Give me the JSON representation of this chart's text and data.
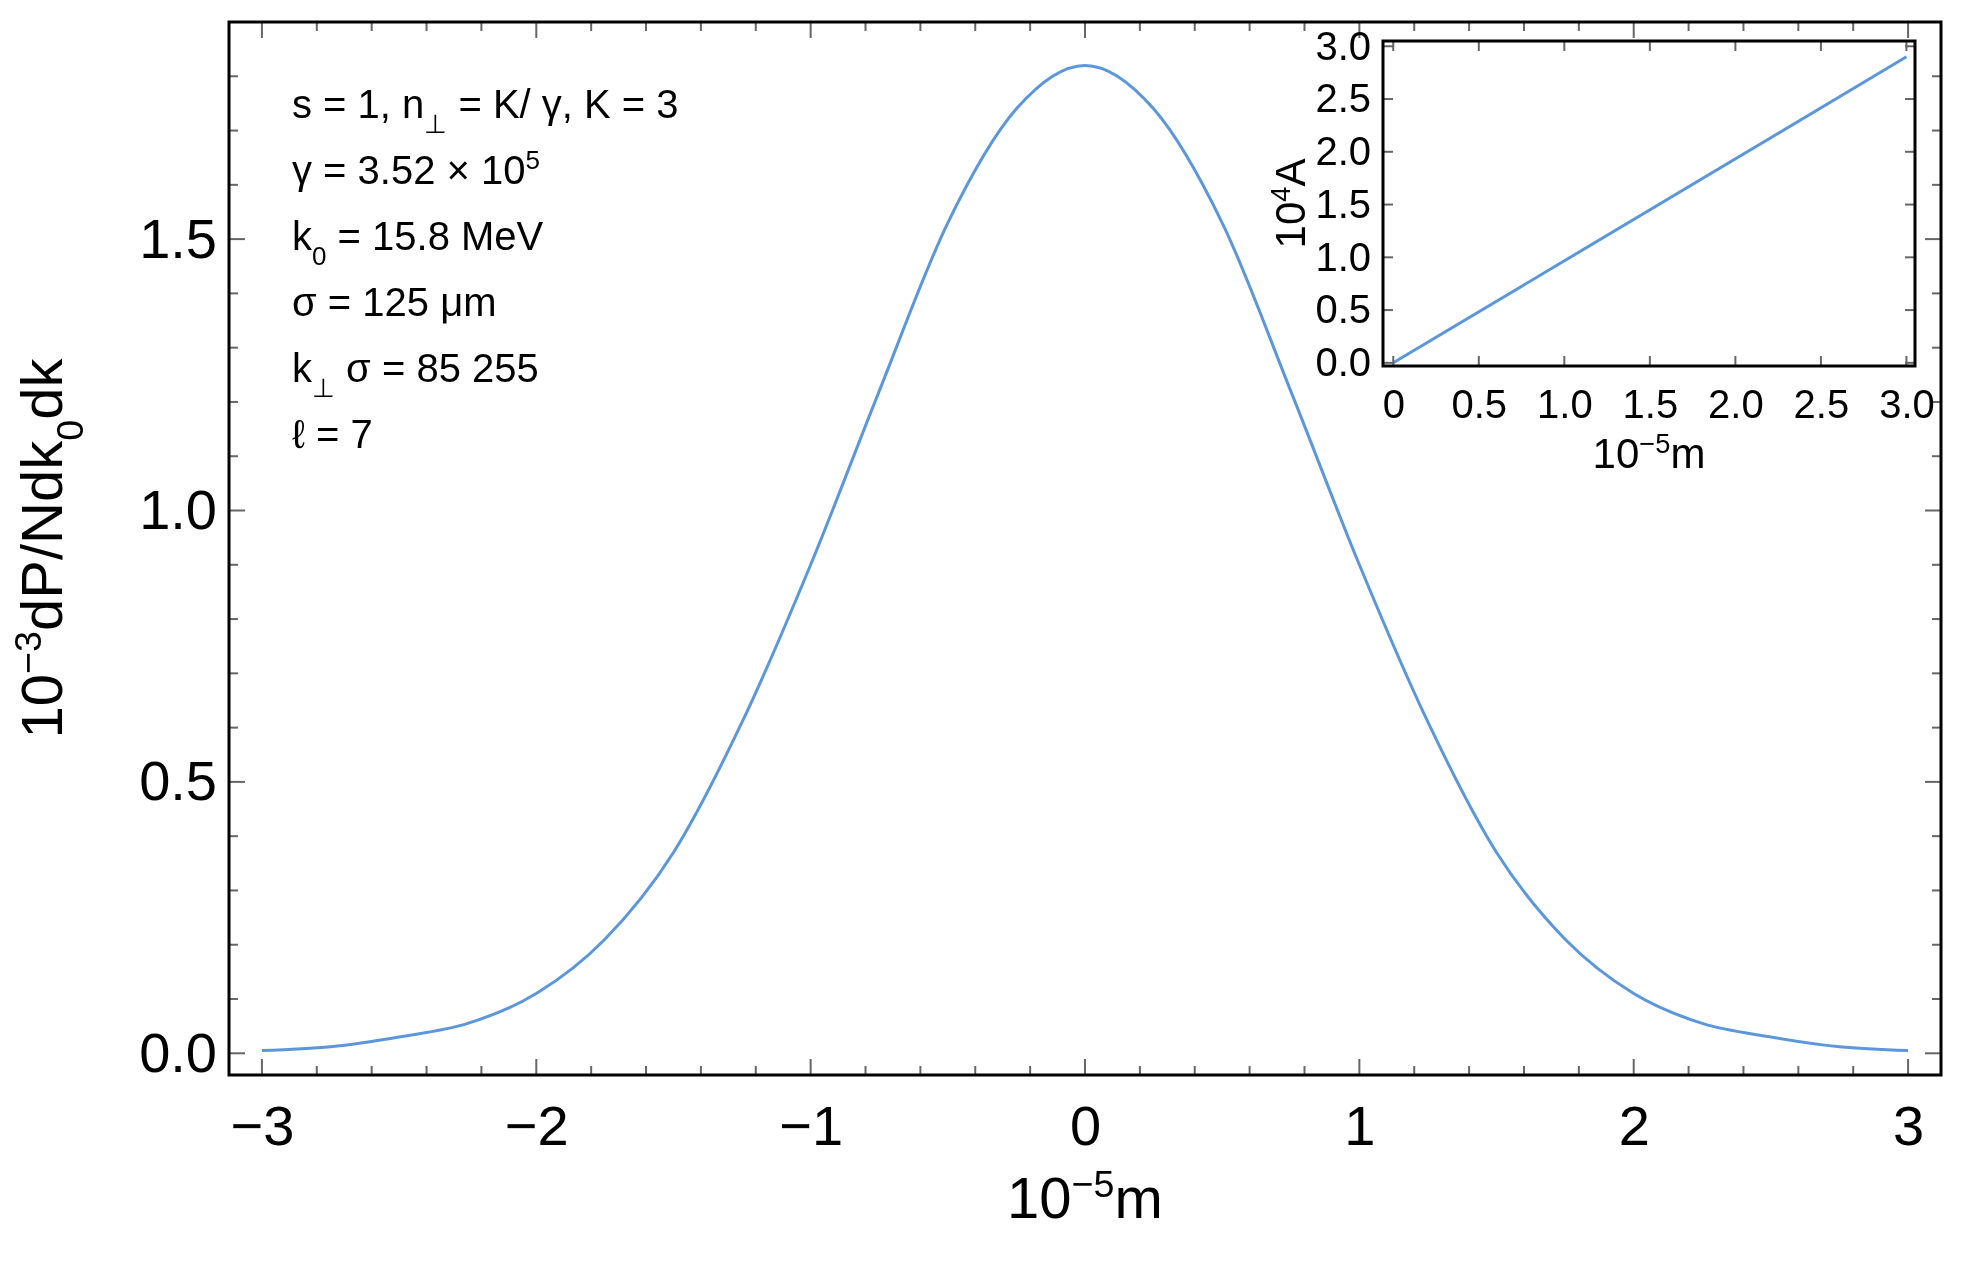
{
  "chart_data": [
    {
      "type": "line",
      "xlabel": "10$^{−5}$m",
      "ylabel": "10$^{−3}$dP/Ndk$_{0}$dk",
      "x": [
        -3,
        -2.75,
        -2.5,
        -2.25,
        -2,
        -1.75,
        -1.5,
        -1.25,
        -1,
        -0.75,
        -0.5,
        -0.25,
        0,
        0.25,
        0.5,
        0.75,
        1,
        1.25,
        1.5,
        1.75,
        2,
        2.25,
        2.5,
        2.75,
        3
      ],
      "series": [
        {
          "color": "#5b97da",
          "values": [
            0.005,
            0.012,
            0.03,
            0.055,
            0.11,
            0.21,
            0.37,
            0.61,
            0.9,
            1.22,
            1.53,
            1.74,
            1.82,
            1.74,
            1.53,
            1.22,
            0.9,
            0.61,
            0.37,
            0.21,
            0.11,
            0.055,
            0.03,
            0.012,
            0.005
          ]
        }
      ],
      "xlim": [
        -3.12,
        3.12
      ],
      "ylim": [
        -0.04,
        1.9
      ],
      "xticks": [
        -3,
        {
          "value": -2.8,
          "label": null
        },
        {
          "value": -2.6,
          "label": null
        },
        {
          "value": -2.4,
          "label": null
        },
        {
          "value": -2.2,
          "label": null
        },
        -2,
        {
          "value": -1.8,
          "label": null
        },
        {
          "value": -1.6,
          "label": null
        },
        {
          "value": -1.4,
          "label": null
        },
        {
          "value": -1.2,
          "label": null
        },
        -1,
        {
          "value": -0.8,
          "label": null
        },
        {
          "value": -0.6,
          "label": null
        },
        {
          "value": -0.4,
          "label": null
        },
        {
          "value": -0.2,
          "label": null
        },
        0,
        {
          "value": 0.2,
          "label": null
        },
        {
          "value": 0.4,
          "label": null
        },
        {
          "value": 0.6,
          "label": null
        },
        {
          "value": 0.8,
          "label": null
        },
        1,
        {
          "value": 1.2,
          "label": null
        },
        {
          "value": 1.4,
          "label": null
        },
        {
          "value": 1.6,
          "label": null
        },
        {
          "value": 1.8,
          "label": null
        },
        2,
        {
          "value": 2.2,
          "label": null
        },
        {
          "value": 2.4,
          "label": null
        },
        {
          "value": 2.6,
          "label": null
        },
        {
          "value": 2.8,
          "label": null
        },
        3
      ],
      "yticks": [
        {
          "value": 0,
          "label": "0.0"
        },
        {
          "value": 0.1,
          "label": null
        },
        {
          "value": 0.2,
          "label": null
        },
        {
          "value": 0.3,
          "label": null
        },
        {
          "value": 0.4,
          "label": null
        },
        0.5,
        {
          "value": 0.6,
          "label": null
        },
        {
          "value": 0.7,
          "label": null
        },
        {
          "value": 0.8,
          "label": null
        },
        {
          "value": 0.9,
          "label": null
        },
        {
          "value": 1,
          "label": "1.0"
        },
        {
          "value": 1.1,
          "label": null
        },
        {
          "value": 1.2,
          "label": null
        },
        {
          "value": 1.3,
          "label": null
        },
        {
          "value": 1.4,
          "label": null
        },
        1.5,
        {
          "value": 1.6,
          "label": null
        },
        {
          "value": 1.7,
          "label": null
        },
        {
          "value": 1.8,
          "label": null
        }
      ],
      "grid": false,
      "marker": "none",
      "line_style": "solid",
      "annotations": [
        "s = 1, n$_{⊥}$ = K/ γ,  K = 3",
        "γ = 3.52 × 10$^{5}$",
        "k$_{0}$ = 15.8 MeV",
        "σ = 125 μm",
        "k$_{⊥}$ σ = 85 255",
        "ℓ = 7"
      ]
    },
    {
      "type": "line",
      "xlabel": "10$^{−5}$m",
      "ylabel": "10$^{4}$A",
      "x": [
        0,
        3
      ],
      "series": [
        {
          "color": "#5b97da",
          "values": [
            0,
            2.9
          ]
        }
      ],
      "xlim": [
        -0.06,
        3.05
      ],
      "ylim": [
        -0.03,
        3.05
      ],
      "xticks": [
        0,
        0.5,
        {
          "value": 1,
          "label": "1.0"
        },
        1.5,
        {
          "value": 2,
          "label": "2.0"
        },
        2.5,
        {
          "value": 3,
          "label": "3.0"
        }
      ],
      "yticks": [
        {
          "value": 0,
          "label": "0.0"
        },
        0.5,
        {
          "value": 1,
          "label": "1.0"
        },
        1.5,
        {
          "value": 2,
          "label": "2.0"
        },
        2.5,
        {
          "value": 3,
          "label": "3.0"
        }
      ],
      "grid": false,
      "marker": "none",
      "line_style": "solid"
    }
  ]
}
